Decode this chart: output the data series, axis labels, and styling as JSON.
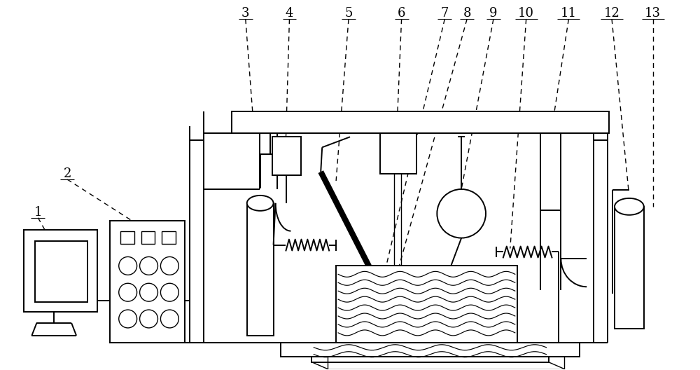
{
  "bg_color": "#ffffff",
  "fig_width": 10.0,
  "fig_height": 5.28,
  "dpi": 100,
  "lw": 1.4,
  "lw_thin": 1.0,
  "lw_thick": 2.2
}
